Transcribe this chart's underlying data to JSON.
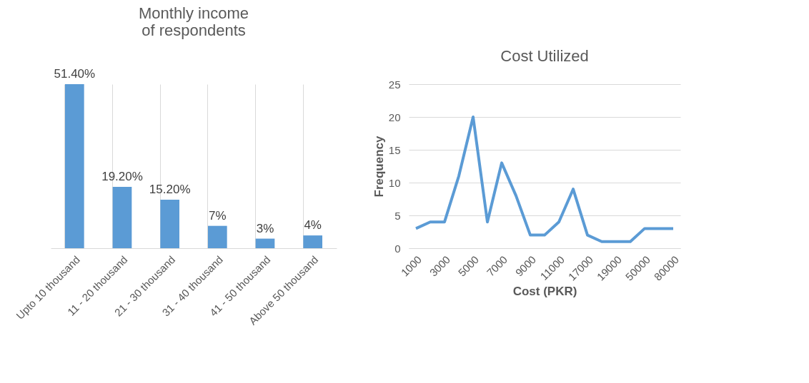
{
  "chart_data": [
    {
      "type": "bar",
      "title": "Monthly income of respondents",
      "categories": [
        "Upto 10 thousand",
        "11 - 20 thousand",
        "21 - 30 thousand",
        "31 - 40 thousand",
        "41 - 50 thousand",
        "Above 50 thousand"
      ],
      "values": [
        51.4,
        19.2,
        15.2,
        7,
        3,
        4
      ],
      "value_labels": [
        "51.40%",
        "19.20%",
        "15.20%",
        "7%",
        "3%",
        "4%"
      ],
      "color": "#5b9bd5",
      "grid": "x",
      "tick_labels": "x"
    },
    {
      "type": "line",
      "title": "Cost Utilized",
      "xlabel": "Cost (PKR)",
      "ylabel": "Frequency",
      "categories": [
        "1000",
        null,
        "3000",
        null,
        "5000",
        null,
        "7000",
        null,
        "9000",
        null,
        "11000",
        null,
        "17000",
        null,
        "19000",
        null,
        "50000",
        null,
        "80000"
      ],
      "values": [
        3,
        4,
        4,
        11,
        20,
        4,
        13,
        8,
        2,
        2,
        4,
        9,
        2,
        1,
        1,
        1,
        3,
        3,
        3
      ],
      "color": "#5b9bd5",
      "ylim": [
        0,
        25
      ],
      "yticks": [
        0,
        5,
        10,
        15,
        20,
        25
      ],
      "grid": "y"
    }
  ]
}
